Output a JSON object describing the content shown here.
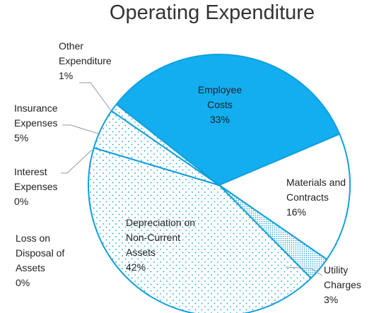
{
  "chart_data": {
    "type": "pie",
    "title": "Operating Expenditure",
    "categories": [
      "Employee Costs",
      "Materials and Contracts",
      "Utility Charges",
      "Depreciation on Non-Current Assets",
      "Loss on Disposal of Assets",
      "Interest Expenses",
      "Insurance Expenses",
      "Other Expenditure"
    ],
    "values": [
      33,
      16,
      3,
      42,
      0,
      0,
      5,
      1
    ],
    "value_labels": [
      "33%",
      "16%",
      "3%",
      "42%",
      "0%",
      "0%",
      "5%",
      "1%"
    ],
    "colors": [
      "#12aef0",
      "#ffffff",
      "#ffffff",
      "#ffffff",
      "#ffffff",
      "#ffffff",
      "#ffffff",
      "#ffffff"
    ],
    "patterns": [
      "solid",
      "solid",
      "dense-dots",
      "dots",
      "dots",
      "dots",
      "dots",
      "dots"
    ]
  }
}
